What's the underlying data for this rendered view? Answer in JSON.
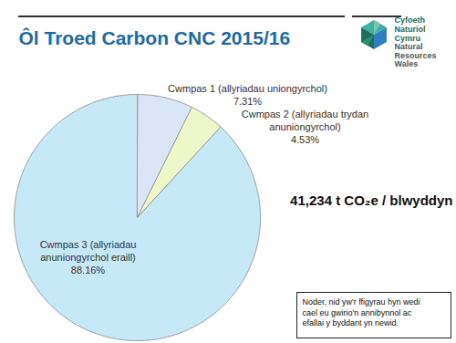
{
  "chart_data": {
    "type": "pie",
    "title": "Ôl Troed Carbon CNC 2015/16",
    "categories": [
      "Cwmpas 1 (allyriadau uniongyrchol)",
      "Cwmpas 2 (allyriadau trydan\nanuniongyrchol)",
      "Cwmpas 3 (allyriadau\nanuniongyrchol eraill)"
    ],
    "values": [
      7.31,
      4.53,
      88.16
    ],
    "value_labels": [
      "7.31%",
      "4.53%",
      "88.16%"
    ],
    "colors": [
      "#dbe5f8",
      "#eef7c8",
      "#c6e9f8"
    ],
    "data_labels": true,
    "annotations": [
      "41,234 t CO₂e / blwyddyn",
      "Noder, nid yw'r ffigyrau hyn wedi\ncael eu gwirio'n annibynnol ac\nefallai y byddant yn newid."
    ],
    "logo_text": [
      "Cyfoeth",
      "Naturiol",
      "Cymru",
      "Natural",
      "Resources",
      "Wales"
    ]
  }
}
